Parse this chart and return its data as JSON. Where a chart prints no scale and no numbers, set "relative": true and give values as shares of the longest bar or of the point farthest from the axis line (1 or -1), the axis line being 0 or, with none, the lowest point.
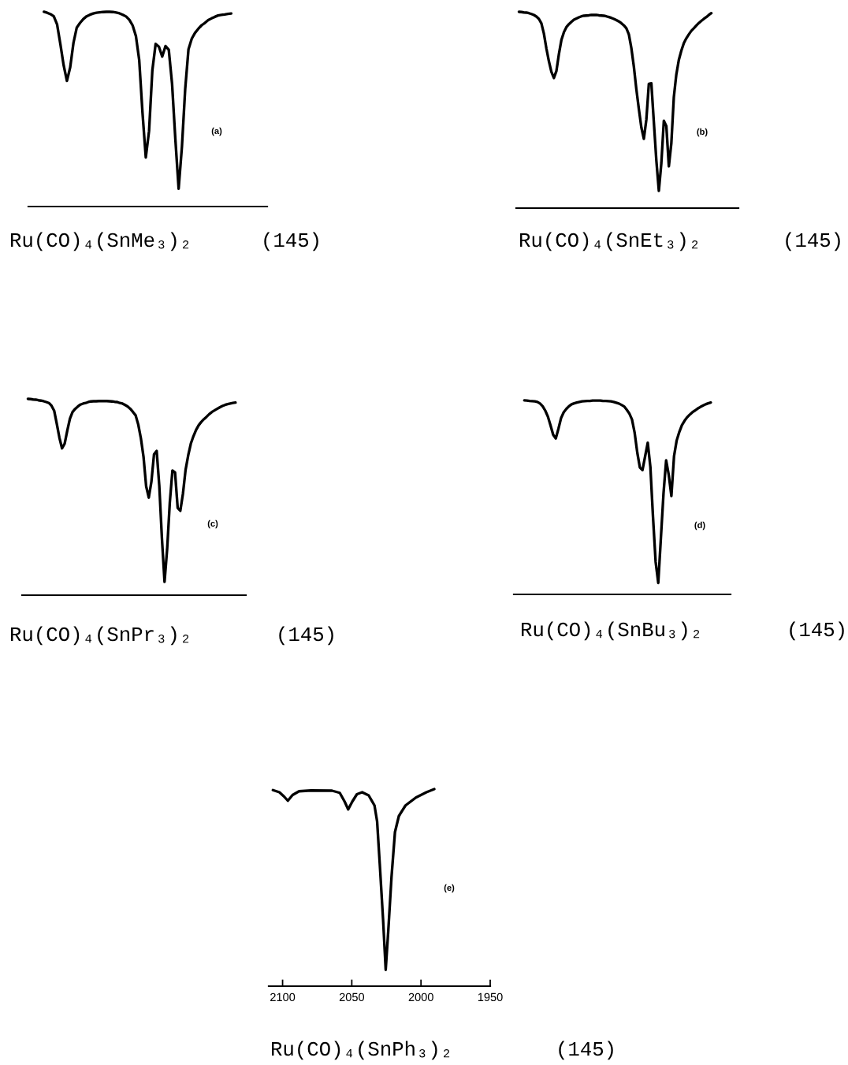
{
  "chart_data": [
    {
      "type": "line",
      "title": "Ru(CO)₄(SnMe₃)₂",
      "annotations": [
        "(a)",
        "(145)"
      ],
      "relative": true,
      "categories": [
        null,
        null,
        null,
        null,
        null,
        null,
        null,
        null,
        null,
        null,
        null,
        null,
        null,
        null,
        null,
        null,
        null,
        null,
        null,
        null,
        null,
        null,
        null,
        null,
        null,
        null,
        null,
        null,
        null,
        null,
        null,
        null,
        null,
        null,
        null,
        null,
        null,
        null,
        null,
        null,
        null,
        null,
        null,
        null,
        null,
        null,
        null,
        null,
        null,
        null,
        null,
        null,
        null,
        null,
        null,
        null,
        null,
        null
      ],
      "series": [
        {
          "color": "#000000",
          "values": [
            1.0,
            0.995,
            0.988,
            0.977,
            0.936,
            0.835,
            0.726,
            0.645,
            0.715,
            0.841,
            0.919,
            0.943,
            0.963,
            0.977,
            0.985,
            0.991,
            0.995,
            0.997,
            0.999,
            1.0,
            1.0,
            0.999,
            0.996,
            0.992,
            0.985,
            0.976,
            0.959,
            0.93,
            0.875,
            0.753,
            0.482,
            0.252,
            0.388,
            0.699,
            0.835,
            0.821,
            0.77,
            0.824,
            0.805,
            0.631,
            0.347,
            0.092,
            0.306,
            0.604,
            0.808,
            0.862,
            0.892,
            0.913,
            0.931,
            0.943,
            0.957,
            0.966,
            0.974,
            0.981,
            0.984,
            0.986,
            0.989,
            0.991
          ]
        }
      ]
    },
    {
      "type": "line",
      "title": "Ru(CO)₄(SnEt₃)₂",
      "annotations": [
        "(b)",
        "(145)"
      ],
      "relative": true,
      "categories": [
        null,
        null,
        null,
        null,
        null,
        null,
        null,
        null,
        null,
        null,
        null,
        null,
        null,
        null,
        null,
        null,
        null,
        null,
        null,
        null,
        null,
        null,
        null,
        null,
        null,
        null,
        null,
        null,
        null,
        null,
        null,
        null,
        null,
        null,
        null,
        null,
        null,
        null,
        null,
        null,
        null,
        null,
        null,
        null,
        null,
        null,
        null,
        null,
        null,
        null,
        null,
        null,
        null,
        null,
        null,
        null,
        null,
        null,
        null,
        null,
        null,
        null,
        null,
        null,
        null,
        null,
        null,
        null,
        null,
        null,
        null,
        null,
        null,
        null,
        null,
        null,
        null,
        null
      ],
      "series": [
        {
          "color": "#000000",
          "values": [
            1.0,
            0.999,
            0.997,
            0.996,
            0.993,
            0.989,
            0.984,
            0.976,
            0.964,
            0.941,
            0.889,
            0.813,
            0.748,
            0.694,
            0.663,
            0.698,
            0.784,
            0.856,
            0.896,
            0.922,
            0.937,
            0.949,
            0.96,
            0.966,
            0.972,
            0.977,
            0.98,
            0.981,
            0.982,
            0.984,
            0.984,
            0.984,
            0.982,
            0.981,
            0.98,
            0.977,
            0.973,
            0.969,
            0.964,
            0.958,
            0.951,
            0.942,
            0.931,
            0.916,
            0.885,
            0.815,
            0.721,
            0.606,
            0.505,
            0.411,
            0.353,
            0.451,
            0.633,
            0.636,
            0.438,
            0.243,
            0.088,
            0.229,
            0.445,
            0.418,
            0.213,
            0.33,
            0.566,
            0.681,
            0.755,
            0.802,
            0.84,
            0.865,
            0.885,
            0.903,
            0.916,
            0.93,
            0.943,
            0.954,
            0.964,
            0.973,
            0.984,
            0.993
          ]
        }
      ]
    },
    {
      "type": "line",
      "title": "Ru(CO)₄(SnPr₃)₂",
      "annotations": [
        "(c)",
        "(145)"
      ],
      "relative": true,
      "categories": [
        null,
        null,
        null,
        null,
        null,
        null,
        null,
        null,
        null,
        null,
        null,
        null,
        null,
        null,
        null,
        null,
        null,
        null,
        null,
        null,
        null,
        null,
        null,
        null,
        null,
        null,
        null,
        null,
        null,
        null,
        null,
        null,
        null,
        null,
        null,
        null,
        null,
        null,
        null,
        null,
        null,
        null,
        null,
        null,
        null,
        null,
        null,
        null,
        null,
        null,
        null,
        null,
        null,
        null,
        null,
        null,
        null,
        null,
        null,
        null,
        null,
        null,
        null,
        null,
        null,
        null,
        null,
        null,
        null,
        null,
        null,
        null,
        null,
        null,
        null,
        null,
        null,
        null,
        null,
        null
      ],
      "series": [
        {
          "color": "#000000",
          "values": [
            1.0,
            0.999,
            0.997,
            0.996,
            0.993,
            0.991,
            0.988,
            0.984,
            0.979,
            0.965,
            0.94,
            0.873,
            0.802,
            0.748,
            0.772,
            0.839,
            0.899,
            0.933,
            0.949,
            0.961,
            0.971,
            0.976,
            0.979,
            0.984,
            0.987,
            0.988,
            0.988,
            0.989,
            0.989,
            0.989,
            0.989,
            0.988,
            0.987,
            0.985,
            0.984,
            0.979,
            0.976,
            0.969,
            0.961,
            0.949,
            0.933,
            0.916,
            0.869,
            0.799,
            0.705,
            0.555,
            0.497,
            0.578,
            0.718,
            0.735,
            0.558,
            0.29,
            0.068,
            0.236,
            0.471,
            0.635,
            0.625,
            0.444,
            0.43,
            0.517,
            0.638,
            0.712,
            0.772,
            0.81,
            0.842,
            0.866,
            0.883,
            0.897,
            0.909,
            0.922,
            0.933,
            0.941,
            0.949,
            0.957,
            0.964,
            0.969,
            0.973,
            0.976,
            0.979,
            0.981
          ]
        }
      ]
    },
    {
      "type": "line",
      "title": "Ru(CO)₄(SnBu₃)₂",
      "annotations": [
        "(d)",
        "(145)"
      ],
      "relative": true,
      "categories": [
        null,
        null,
        null,
        null,
        null,
        null,
        null,
        null,
        null,
        null,
        null,
        null,
        null,
        null,
        null,
        null,
        null,
        null,
        null,
        null,
        null,
        null,
        null,
        null,
        null,
        null,
        null,
        null,
        null,
        null,
        null,
        null,
        null,
        null,
        null,
        null,
        null,
        null,
        null,
        null,
        null,
        null,
        null,
        null,
        null,
        null,
        null,
        null,
        null,
        null,
        null,
        null,
        null,
        null,
        null,
        null,
        null,
        null,
        null,
        null,
        null,
        null,
        null,
        null,
        null,
        null,
        null,
        null,
        null,
        null,
        null,
        null
      ],
      "series": [
        {
          "color": "#000000",
          "values": [
            1.0,
            0.999,
            0.997,
            0.996,
            0.995,
            0.992,
            0.984,
            0.97,
            0.947,
            0.916,
            0.871,
            0.823,
            0.804,
            0.854,
            0.909,
            0.939,
            0.956,
            0.97,
            0.98,
            0.985,
            0.989,
            0.992,
            0.995,
            0.996,
            0.997,
            0.997,
            0.999,
            0.999,
            0.999,
            0.999,
            0.997,
            0.997,
            0.996,
            0.995,
            0.992,
            0.988,
            0.984,
            0.977,
            0.969,
            0.952,
            0.932,
            0.902,
            0.834,
            0.732,
            0.654,
            0.641,
            0.712,
            0.782,
            0.657,
            0.399,
            0.167,
            0.059,
            0.29,
            0.521,
            0.691,
            0.616,
            0.507,
            0.712,
            0.793,
            0.837,
            0.872,
            0.895,
            0.913,
            0.927,
            0.939,
            0.948,
            0.958,
            0.966,
            0.973,
            0.98,
            0.985,
            0.989
          ]
        }
      ]
    },
    {
      "type": "line",
      "title": "Ru(CO)₄(SnPh₃)₂",
      "annotations": [
        "(e)",
        "(145)"
      ],
      "relative": true,
      "x": [
        2107.0,
        2102.3,
        2098.9,
        2096.2,
        2092.8,
        2088.1,
        2079.5,
        2064.3,
        2058.7,
        2055.2,
        2052.6,
        2049.6,
        2046.3,
        2042.5,
        2037.8,
        2033.6,
        2031.7,
        2029.8,
        2027.4,
        2025.5,
        2023.6,
        2021.3,
        2018.8,
        2016.0,
        2011.2,
        2003.7,
        1996.1,
        1990.4
      ],
      "xlim": [
        2110,
        1950
      ],
      "xticks": [
        2100,
        2050,
        2000,
        1950
      ],
      "series": [
        {
          "color": "#000000",
          "values": [
            0.995,
            0.984,
            0.962,
            0.941,
            0.97,
            0.989,
            0.993,
            0.992,
            0.981,
            0.937,
            0.897,
            0.937,
            0.974,
            0.984,
            0.968,
            0.917,
            0.836,
            0.621,
            0.339,
            0.083,
            0.285,
            0.554,
            0.782,
            0.863,
            0.917,
            0.957,
            0.984,
            1.0
          ]
        }
      ]
    }
  ]
}
